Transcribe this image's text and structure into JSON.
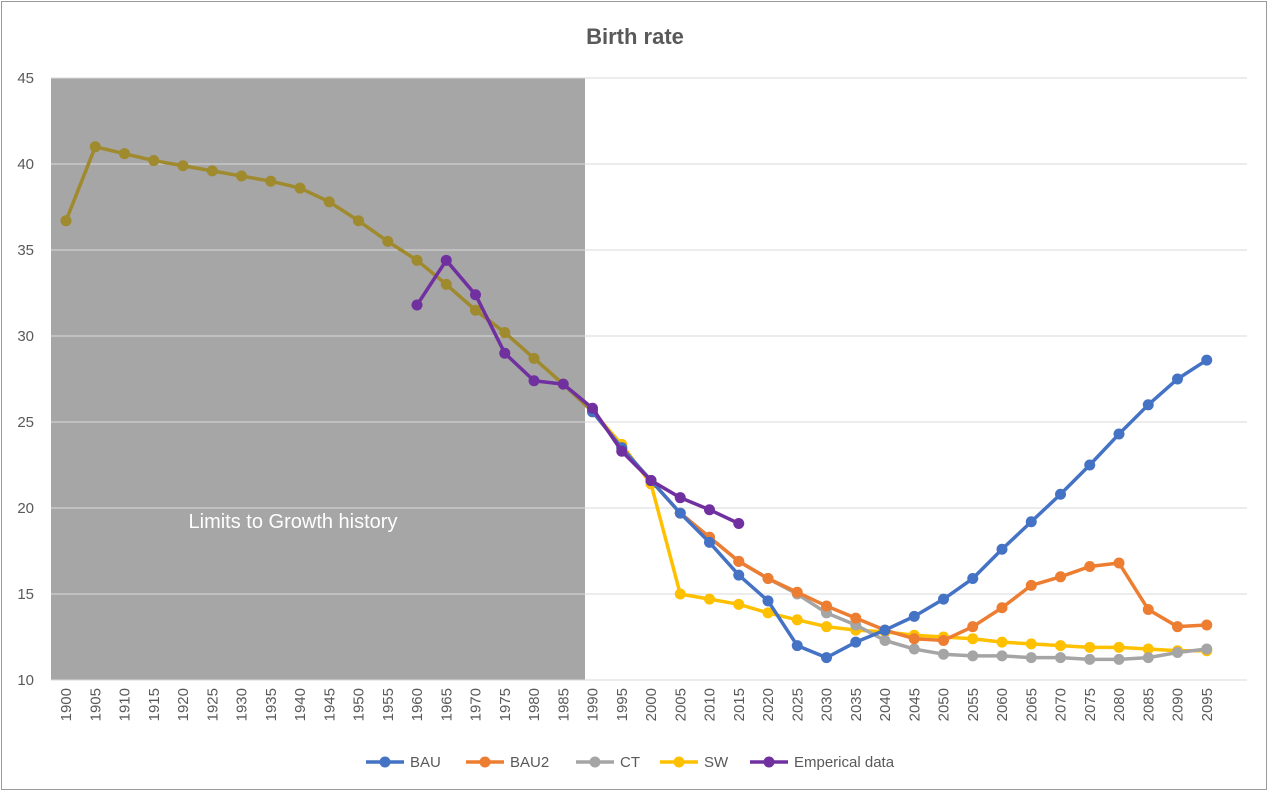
{
  "chart_data": {
    "type": "line",
    "title": "Birth rate",
    "xlabel": "",
    "ylabel": "",
    "ylim": [
      10,
      45
    ],
    "yticks": [
      10,
      15,
      20,
      25,
      30,
      35,
      40,
      45
    ],
    "x": [
      1900,
      1905,
      1910,
      1915,
      1920,
      1925,
      1930,
      1935,
      1940,
      1945,
      1950,
      1955,
      1960,
      1965,
      1970,
      1975,
      1980,
      1985,
      1990,
      1995,
      2000,
      2005,
      2010,
      2015,
      2020,
      2025,
      2030,
      2035,
      2040,
      2045,
      2050,
      2055,
      2060,
      2065,
      2070,
      2075,
      2080,
      2085,
      2090,
      2095
    ],
    "grid": "horizontal",
    "legend_position": "bottom",
    "shaded_region": {
      "x_from": 1899,
      "x_to": 1989,
      "label": "Limits to Growth history",
      "color": "#a6a6a6"
    },
    "history": {
      "x": [
        1900,
        1905,
        1910,
        1915,
        1920,
        1925,
        1930,
        1935,
        1940,
        1945,
        1950,
        1955,
        1960,
        1965,
        1970,
        1975,
        1980,
        1985,
        1990
      ],
      "values": [
        36.7,
        41.0,
        40.6,
        40.2,
        39.9,
        39.6,
        39.3,
        39.0,
        38.6,
        37.8,
        36.7,
        35.5,
        34.4,
        33.0,
        31.5,
        30.2,
        28.7,
        27.2,
        25.6
      ],
      "color": "#a08a2e"
    },
    "series": [
      {
        "name": "BAU",
        "color": "#4472c4",
        "x": [
          1990,
          1995,
          2000,
          2005,
          2010,
          2015,
          2020,
          2025,
          2030,
          2035,
          2040,
          2045,
          2050,
          2055,
          2060,
          2065,
          2070,
          2075,
          2080,
          2085,
          2090,
          2095
        ],
        "values": [
          25.6,
          23.5,
          21.6,
          19.7,
          18.0,
          16.1,
          14.6,
          12.0,
          11.3,
          12.2,
          12.9,
          13.7,
          14.7,
          15.9,
          17.6,
          19.2,
          20.8,
          22.5,
          24.3,
          26.0,
          27.5,
          28.6
        ]
      },
      {
        "name": "BAU2",
        "color": "#ed7d31",
        "x": [
          1990,
          1995,
          2000,
          2005,
          2010,
          2015,
          2020,
          2025,
          2030,
          2035,
          2040,
          2045,
          2050,
          2055,
          2060,
          2065,
          2070,
          2075,
          2080,
          2085,
          2090,
          2095
        ],
        "values": [
          25.6,
          23.5,
          21.6,
          19.7,
          18.3,
          16.9,
          15.9,
          15.1,
          14.3,
          13.6,
          12.9,
          12.4,
          12.3,
          13.1,
          14.2,
          15.5,
          16.0,
          16.6,
          16.8,
          14.1,
          13.1,
          13.2
        ]
      },
      {
        "name": "CT",
        "color": "#a5a5a5",
        "x": [
          1990,
          1995,
          2000,
          2005,
          2010,
          2015,
          2020,
          2025,
          2030,
          2035,
          2040,
          2045,
          2050,
          2055,
          2060,
          2065,
          2070,
          2075,
          2080,
          2085,
          2090,
          2095
        ],
        "values": [
          25.6,
          23.5,
          21.6,
          19.7,
          18.3,
          16.9,
          15.9,
          15.0,
          13.9,
          13.2,
          12.3,
          11.8,
          11.5,
          11.4,
          11.4,
          11.3,
          11.3,
          11.2,
          11.2,
          11.3,
          11.6,
          11.8
        ]
      },
      {
        "name": "SW",
        "color": "#ffc000",
        "x": [
          1990,
          1995,
          2000,
          2005,
          2010,
          2015,
          2020,
          2025,
          2030,
          2035,
          2040,
          2045,
          2050,
          2055,
          2060,
          2065,
          2070,
          2075,
          2080,
          2085,
          2090,
          2095
        ],
        "values": [
          25.6,
          23.7,
          21.4,
          15.0,
          14.7,
          14.4,
          13.9,
          13.5,
          13.1,
          12.9,
          12.8,
          12.6,
          12.5,
          12.4,
          12.2,
          12.1,
          12.0,
          11.9,
          11.9,
          11.8,
          11.7,
          11.7
        ]
      },
      {
        "name": "Emperical data",
        "color": "#7030a0",
        "x": [
          1960,
          1965,
          1970,
          1975,
          1980,
          1985,
          1990,
          1995,
          2000,
          2005,
          2010,
          2015
        ],
        "values": [
          31.8,
          34.4,
          32.4,
          29.0,
          27.4,
          27.2,
          25.8,
          23.3,
          21.6,
          20.6,
          19.9,
          19.1
        ]
      }
    ]
  }
}
